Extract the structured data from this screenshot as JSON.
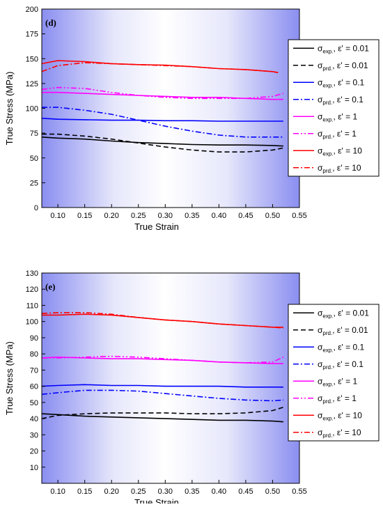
{
  "chart_data": [
    {
      "panel": "(d)",
      "type": "line",
      "xlabel": "True Strain",
      "ylabel": "True Stress (MPa)",
      "xlim": [
        0.07,
        0.55
      ],
      "ylim": [
        0,
        200
      ],
      "xticks": [
        "0.10",
        "0.15",
        "0.20",
        "0.25",
        "0.30",
        "0.35",
        "0.40",
        "0.45",
        "0.50",
        "0.55"
      ],
      "yticks": [
        "0",
        "25",
        "50",
        "75",
        "100",
        "125",
        "150",
        "175",
        "200"
      ],
      "legend_position": "right",
      "series": [
        {
          "name": "σexp, ε' = 0.01",
          "sub": "exp.",
          "rate": "0.01",
          "color": "#000000",
          "dash": "solid",
          "x": [
            0.07,
            0.1,
            0.15,
            0.2,
            0.25,
            0.3,
            0.35,
            0.4,
            0.45,
            0.5,
            0.52
          ],
          "y": [
            71,
            70,
            69,
            67,
            65.5,
            64.5,
            63.5,
            63,
            63,
            62.5,
            62
          ]
        },
        {
          "name": "σprd, ε' = 0.01",
          "sub": "prd.",
          "rate": "0.01",
          "color": "#000000",
          "dash": "dash",
          "x": [
            0.07,
            0.1,
            0.15,
            0.2,
            0.25,
            0.3,
            0.35,
            0.4,
            0.45,
            0.5,
            0.52
          ],
          "y": [
            74,
            74,
            72,
            69,
            65,
            61,
            58,
            56,
            56,
            58,
            60
          ]
        },
        {
          "name": "σexp, ε' = 0.1",
          "sub": "exp.",
          "rate": "0.1",
          "color": "#0000ff",
          "dash": "solid",
          "x": [
            0.07,
            0.1,
            0.15,
            0.2,
            0.25,
            0.3,
            0.35,
            0.4,
            0.45,
            0.5,
            0.52
          ],
          "y": [
            90,
            89,
            88.5,
            88,
            88,
            87.5,
            87.5,
            87,
            87,
            87,
            87
          ]
        },
        {
          "name": "σprd, ε' = 0.1",
          "sub": "prd.",
          "rate": "0.1",
          "color": "#0000ff",
          "dash": "dashdot",
          "x": [
            0.07,
            0.1,
            0.15,
            0.2,
            0.25,
            0.3,
            0.35,
            0.4,
            0.45,
            0.5,
            0.52
          ],
          "y": [
            101,
            101,
            98,
            94,
            88,
            82,
            77,
            73,
            71,
            71,
            71
          ]
        },
        {
          "name": "σexp, ε' = 1",
          "sub": "exp.",
          "rate": "1",
          "color": "#ff00ff",
          "dash": "solid",
          "x": [
            0.07,
            0.1,
            0.15,
            0.2,
            0.25,
            0.3,
            0.35,
            0.4,
            0.45,
            0.5,
            0.52
          ],
          "y": [
            116,
            116,
            115,
            114,
            113,
            112,
            111,
            111,
            110,
            109,
            109
          ]
        },
        {
          "name": "σprd, ε' = 1",
          "sub": "prd.",
          "rate": "1",
          "color": "#ff00ff",
          "dash": "dashdotdot",
          "x": [
            0.07,
            0.1,
            0.15,
            0.2,
            0.25,
            0.3,
            0.35,
            0.4,
            0.45,
            0.5,
            0.52
          ],
          "y": [
            119,
            121,
            120,
            116,
            113,
            111,
            110,
            110,
            110,
            112,
            115
          ]
        },
        {
          "name": "σexp, ε' = 10",
          "sub": "exp.",
          "rate": "10",
          "color": "#ff0000",
          "dash": "solid",
          "x": [
            0.07,
            0.1,
            0.15,
            0.2,
            0.25,
            0.3,
            0.35,
            0.4,
            0.45,
            0.5,
            0.51
          ],
          "y": [
            145,
            148,
            147,
            145,
            144,
            143.5,
            142,
            140,
            139,
            137,
            136
          ]
        },
        {
          "name": "σprd, ε' = 10",
          "sub": "prd.",
          "rate": "10",
          "color": "#ff0000",
          "dash": "dashdot",
          "x": [
            0.07,
            0.1,
            0.15,
            0.2,
            0.25,
            0.3,
            0.35,
            0.4,
            0.45,
            0.5,
            0.51
          ],
          "y": [
            137,
            143,
            146,
            145,
            144,
            143,
            142,
            140,
            139,
            137,
            136
          ]
        }
      ]
    },
    {
      "panel": "(e)",
      "type": "line",
      "xlabel": "True Strain",
      "ylabel": "True Stress (MPa)",
      "xlim": [
        0.07,
        0.55
      ],
      "ylim": [
        0,
        130
      ],
      "xticks": [
        "0.10",
        "0.15",
        "0.20",
        "0.25",
        "0.30",
        "0.35",
        "0.40",
        "0.45",
        "0.50",
        "0.55"
      ],
      "yticks": [
        "10",
        "20",
        "30",
        "40",
        "50",
        "60",
        "70",
        "80",
        "90",
        "100",
        "110",
        "120",
        "130"
      ],
      "legend_position": "right",
      "series": [
        {
          "name": "σexp, ε' = 0.01",
          "sub": "exp.",
          "rate": "0.01",
          "color": "#000000",
          "dash": "solid",
          "x": [
            0.07,
            0.1,
            0.15,
            0.2,
            0.25,
            0.3,
            0.35,
            0.4,
            0.45,
            0.5,
            0.52
          ],
          "y": [
            43,
            42.5,
            41.5,
            41,
            40.5,
            40,
            39.5,
            39,
            39,
            38.5,
            38
          ]
        },
        {
          "name": "σprd, ε' = 0.01",
          "sub": "prd.",
          "rate": "0.01",
          "color": "#000000",
          "dash": "dash",
          "x": [
            0.07,
            0.1,
            0.15,
            0.2,
            0.25,
            0.3,
            0.35,
            0.4,
            0.45,
            0.5,
            0.52
          ],
          "y": [
            40,
            42,
            43,
            43.5,
            43.5,
            43.5,
            43,
            43,
            43.5,
            45,
            47
          ]
        },
        {
          "name": "σexp, ε' = 0.1",
          "sub": "exp.",
          "rate": "0.1",
          "color": "#0000ff",
          "dash": "solid",
          "x": [
            0.07,
            0.1,
            0.15,
            0.2,
            0.25,
            0.3,
            0.35,
            0.4,
            0.45,
            0.5,
            0.52
          ],
          "y": [
            60,
            60.5,
            61,
            60.5,
            60.5,
            60,
            60,
            60,
            59.5,
            59.5,
            59.5
          ]
        },
        {
          "name": "σprd, ε' = 0.1",
          "sub": "prd.",
          "rate": "0.1",
          "color": "#0000ff",
          "dash": "dashdot",
          "x": [
            0.07,
            0.1,
            0.15,
            0.2,
            0.25,
            0.3,
            0.35,
            0.4,
            0.45,
            0.5,
            0.52
          ],
          "y": [
            55,
            56,
            57.5,
            57.5,
            57,
            55.5,
            54,
            52.5,
            51.5,
            51,
            51.5
          ]
        },
        {
          "name": "σexp, ε' = 1",
          "sub": "exp.",
          "rate": "1",
          "color": "#ff00ff",
          "dash": "solid",
          "x": [
            0.07,
            0.1,
            0.15,
            0.2,
            0.25,
            0.3,
            0.35,
            0.4,
            0.45,
            0.5,
            0.52
          ],
          "y": [
            77.5,
            78,
            77.5,
            77,
            77,
            76.5,
            76,
            75,
            74.5,
            74,
            74
          ]
        },
        {
          "name": "σprd, ε' = 1",
          "sub": "prd.",
          "rate": "1",
          "color": "#ff00ff",
          "dash": "dashdotdot",
          "x": [
            0.07,
            0.1,
            0.15,
            0.2,
            0.25,
            0.3,
            0.35,
            0.4,
            0.45,
            0.5,
            0.52
          ],
          "y": [
            77.5,
            77.5,
            78,
            78.5,
            78,
            77,
            76,
            75,
            74.5,
            75,
            78
          ]
        },
        {
          "name": "σexp, ε' = 10",
          "sub": "exp.",
          "rate": "10",
          "color": "#ff0000",
          "dash": "solid",
          "x": [
            0.07,
            0.1,
            0.15,
            0.2,
            0.25,
            0.3,
            0.35,
            0.4,
            0.45,
            0.5,
            0.52
          ],
          "y": [
            104,
            104,
            104.5,
            104,
            102.5,
            101,
            100,
            98.5,
            97.5,
            96.5,
            96.5
          ]
        },
        {
          "name": "σprd, ε' = 10",
          "sub": "prd.",
          "rate": "10",
          "color": "#ff0000",
          "dash": "dashdot",
          "x": [
            0.07,
            0.1,
            0.15,
            0.2,
            0.25,
            0.3,
            0.35,
            0.4,
            0.45,
            0.5,
            0.52
          ],
          "y": [
            105,
            105.5,
            105.5,
            104.5,
            102.5,
            101,
            100,
            98.5,
            97.5,
            96.5,
            96
          ]
        }
      ]
    }
  ]
}
